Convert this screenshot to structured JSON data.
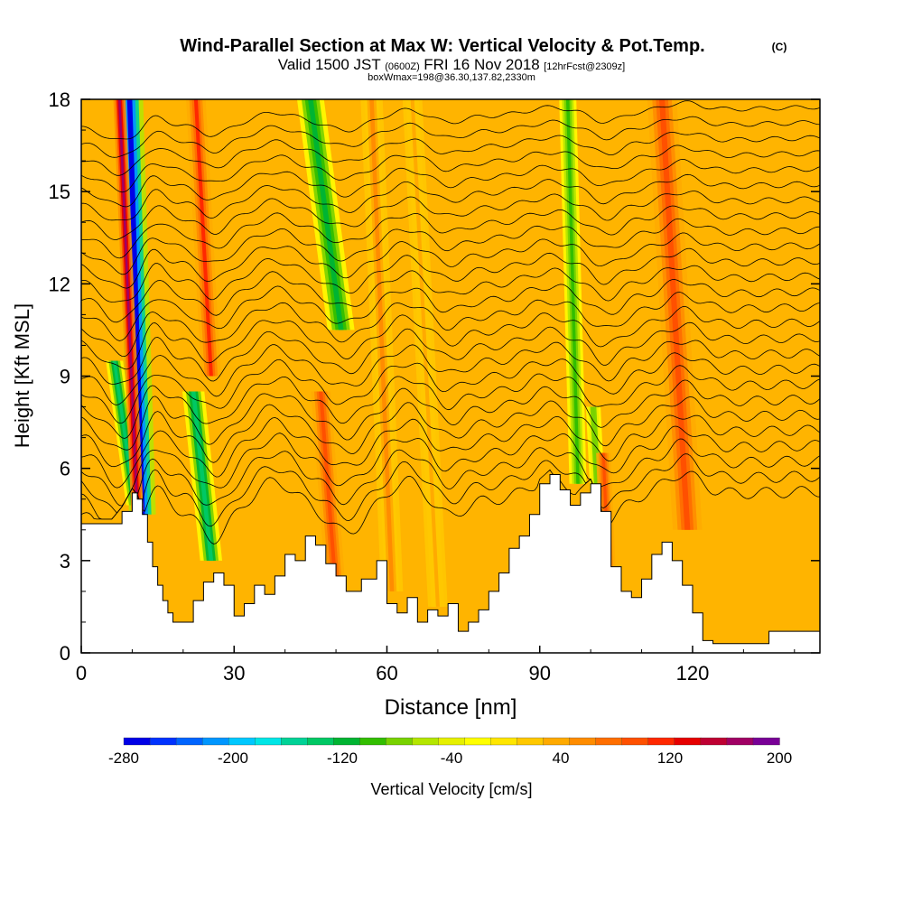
{
  "header": {
    "title": "Wind-Parallel Section at Max W: Vertical Velocity & Pot.Temp.",
    "title_mark": "(C)",
    "valid_prefix": "Valid 1500 JST",
    "valid_utc": "(0600Z)",
    "valid_date": "FRI 16 Nov 2018",
    "forecast_info": "[12hrFcst@2309z]",
    "box_info": "boxWmax=198@36.30,137.82,2330m"
  },
  "chart_data": {
    "type": "heatmap",
    "title": "Wind-Parallel Section at Max W: Vertical Velocity & Pot.Temp.",
    "xlabel": "Distance [nm]",
    "ylabel": "Height [Kft MSL]",
    "xlim": [
      0,
      145
    ],
    "ylim": [
      0,
      18
    ],
    "x_ticks": [
      "0",
      "30",
      "60",
      "90",
      "120"
    ],
    "y_ticks": [
      "0",
      "3",
      "6",
      "9",
      "12",
      "15",
      "18"
    ],
    "terrain": {
      "x": [
        0,
        6,
        8,
        10,
        11,
        12,
        13,
        14,
        15,
        16,
        17,
        18,
        20,
        22,
        24,
        26,
        28,
        30,
        32,
        34,
        36,
        38,
        40,
        42,
        44,
        46,
        48,
        50,
        52,
        55,
        58,
        60,
        62,
        64,
        66,
        68,
        70,
        72,
        74,
        76,
        78,
        80,
        82,
        84,
        86,
        88,
        90,
        92,
        94,
        96,
        98,
        100,
        102,
        104,
        106,
        108,
        110,
        112,
        114,
        116,
        118,
        120,
        122,
        124,
        128,
        132,
        135,
        138,
        140,
        145
      ],
      "height": [
        4.2,
        4.2,
        4.6,
        5.2,
        5.0,
        4.5,
        3.6,
        2.8,
        2.2,
        1.7,
        1.3,
        1.0,
        1.0,
        1.7,
        2.3,
        2.6,
        2.2,
        1.2,
        1.6,
        2.2,
        1.9,
        2.5,
        3.2,
        3.0,
        3.8,
        3.5,
        2.9,
        2.5,
        2.0,
        2.4,
        3.0,
        1.6,
        1.3,
        1.8,
        1.0,
        1.4,
        1.2,
        1.6,
        0.7,
        1.0,
        1.4,
        2.0,
        2.6,
        3.4,
        3.8,
        4.5,
        5.5,
        5.8,
        5.3,
        4.8,
        5.2,
        5.5,
        4.6,
        2.8,
        2.0,
        1.8,
        2.4,
        3.2,
        3.6,
        3.0,
        2.2,
        1.3,
        0.4,
        0.3,
        0.3,
        0.3,
        0.7,
        0.7,
        0.7,
        0.7
      ]
    },
    "velocity_bands": [
      {
        "x": 12.0,
        "lean": -2.5,
        "ybottom": 4.5,
        "ytop": 18,
        "width": 2.2,
        "value": -270
      },
      {
        "x": 10.5,
        "lean": -4.0,
        "ybottom": 4.8,
        "ytop": 9.5,
        "width": 1.4,
        "value": -130
      },
      {
        "x": 11.0,
        "lean": -3.5,
        "ybottom": 4.6,
        "ytop": 18,
        "width": 1.0,
        "value": 180
      },
      {
        "x": 25.5,
        "lean": -3.5,
        "ybottom": 3.0,
        "ytop": 8.5,
        "width": 1.8,
        "value": -130
      },
      {
        "x": 25.5,
        "lean": -3.0,
        "ybottom": 9.0,
        "ytop": 18,
        "width": 1.6,
        "value": 120
      },
      {
        "x": 51.0,
        "lean": -6.0,
        "ybottom": 10.5,
        "ytop": 18,
        "width": 2.2,
        "value": -120
      },
      {
        "x": 50.0,
        "lean": -3.0,
        "ybottom": 2.0,
        "ytop": 8.5,
        "width": 1.6,
        "value": 100
      },
      {
        "x": 61.0,
        "lean": -4.0,
        "ybottom": 2.0,
        "ytop": 18,
        "width": 1.8,
        "value": 60
      },
      {
        "x": 70.0,
        "lean": -5.0,
        "ybottom": 1.5,
        "ytop": 18,
        "width": 1.6,
        "value": 45
      },
      {
        "x": 97.5,
        "lean": -2.0,
        "ybottom": 5.5,
        "ytop": 18,
        "width": 1.4,
        "value": -100
      },
      {
        "x": 102.0,
        "lean": -1.5,
        "ybottom": 3.0,
        "ytop": 8.0,
        "width": 1.2,
        "value": -80
      },
      {
        "x": 103.5,
        "lean": -1.0,
        "ybottom": 2.5,
        "ytop": 6.5,
        "width": 1.2,
        "value": 110
      },
      {
        "x": 119.0,
        "lean": -5.0,
        "ybottom": 4.0,
        "ytop": 18,
        "width": 2.4,
        "value": 110
      }
    ],
    "isentropes": {
      "description_levels": 26,
      "base_heights": [
        4.6,
        5.1,
        5.6,
        6.1,
        6.6,
        7.1,
        7.6,
        8.1,
        8.6,
        9.1,
        9.6,
        10.1,
        10.6,
        11.1,
        11.6,
        12.1,
        12.6,
        13.1,
        13.6,
        14.1,
        14.6,
        15.1,
        15.6,
        16.1,
        16.6,
        17.1
      ]
    },
    "colorbar": {
      "label": "Vertical Velocity [cm/s]",
      "min": -280,
      "max": 200,
      "step": 20,
      "tick_labels": [
        "-280",
        "-200",
        "-120",
        "-40",
        "40",
        "120",
        "200"
      ],
      "colors": [
        "#0000e6",
        "#0032ff",
        "#0064ff",
        "#0096ff",
        "#00c8ff",
        "#00e6e6",
        "#00d296",
        "#00c864",
        "#00b432",
        "#32be00",
        "#78d200",
        "#b4e600",
        "#e6f000",
        "#ffff00",
        "#ffe600",
        "#ffc800",
        "#ffaa00",
        "#ff8c00",
        "#ff6e00",
        "#ff5000",
        "#ff2800",
        "#e60000",
        "#be0032",
        "#a00064",
        "#780096"
      ]
    }
  }
}
